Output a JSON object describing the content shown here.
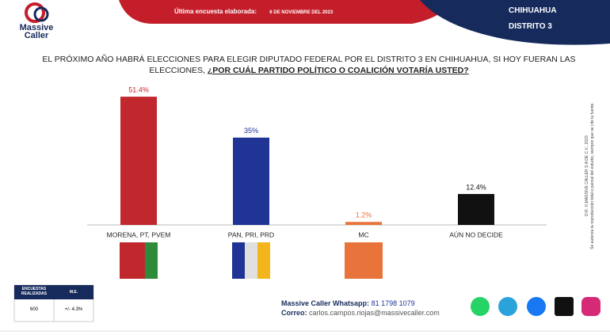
{
  "header": {
    "brand_top": "Massive",
    "brand_bottom": "Caller",
    "survey_label": "Última encuesta elaborada:",
    "survey_date": "6 DE NOVIEMBRE DEL 2023",
    "state": "CHIHUAHUA",
    "district": "DISTRITO 3"
  },
  "chart_data": {
    "type": "bar",
    "title": "EL PRÓXIMO AÑO HABRÁ ELECCIONES PARA ELEGIR DIPUTADO FEDERAL POR EL DISTRITO 3 EN CHIHUAHUA, SI HOY FUERAN LAS ELECCIONES,",
    "title_emphasis": "¿POR CUÁL PARTIDO POLÍTICO O COALICIÓN VOTARÍA USTED?",
    "categories": [
      "MORENA, PT, PVEM",
      "PAN, PRI, PRD",
      "MC",
      "AÚN NO DECIDE"
    ],
    "values": [
      51.4,
      35,
      1.2,
      12.4
    ],
    "value_labels": [
      "51.4%",
      "35%",
      "1.2%",
      "12.4%"
    ],
    "colors": [
      "#c0282d",
      "#1f3494",
      "#e8743b",
      "#111111"
    ],
    "label_colors": [
      "#c0282d",
      "#1f3494",
      "#e8743b",
      "#111111"
    ],
    "ylim": [
      0,
      60
    ]
  },
  "stats_table": {
    "headers": [
      "ENCUESTAS REALIZADAS",
      "M.E."
    ],
    "values": [
      "600",
      "+/- 4.3%"
    ]
  },
  "footer": {
    "whatsapp_label": "Massive Caller Whatsapp:",
    "whatsapp": "81 1798 1079",
    "email_label": "Correo:",
    "email": "carlos.campos.riojas@massivecaller.com"
  },
  "side_notes": [
    "D.R. ©,MASSIVE CALLER S.A DE C.V., 2023",
    "Se autoriza la reproducción total o parcial del estudio, siempre que se cite la fuente."
  ]
}
